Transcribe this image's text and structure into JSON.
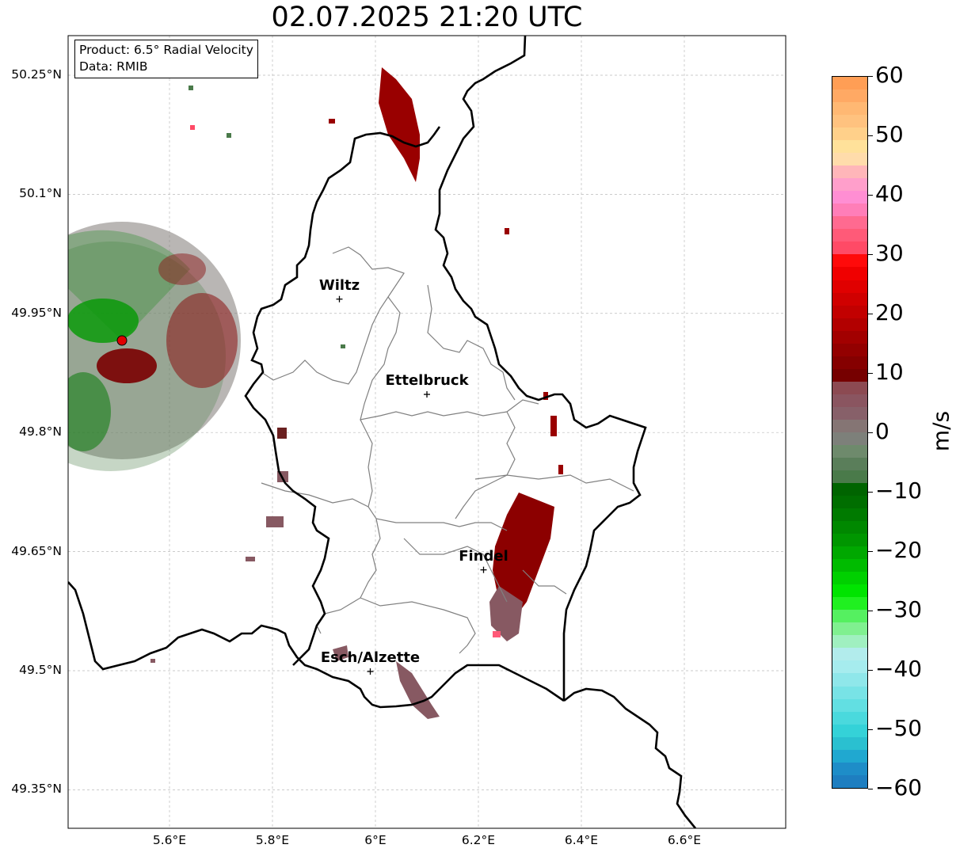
{
  "title": "02.07.2025 21:20 UTC",
  "info": {
    "product": "Product: 6.5° Radial Velocity",
    "data": "Data: RMIB"
  },
  "axes": {
    "lat_labels": [
      "50.25°N",
      "50.1°N",
      "49.95°N",
      "49.8°N",
      "49.65°N",
      "49.5°N",
      "49.35°N"
    ],
    "lat_values": [
      50.25,
      50.1,
      49.95,
      49.8,
      49.65,
      49.5,
      49.35
    ],
    "lon_labels": [
      "5.6°E",
      "5.8°E",
      "6°E",
      "6.2°E",
      "6.4°E",
      "6.6°E"
    ],
    "lon_values": [
      5.6,
      5.8,
      6.0,
      6.2,
      6.4,
      6.6
    ],
    "grid": true
  },
  "cities": [
    {
      "name": "Wiltz",
      "lon": 5.93,
      "lat": 49.968
    },
    {
      "name": "Ettelbruck",
      "lon": 6.1,
      "lat": 49.848
    },
    {
      "name": "Findel",
      "lon": 6.21,
      "lat": 49.627
    },
    {
      "name": "Esch/Alzette",
      "lon": 5.99,
      "lat": 49.499
    }
  ],
  "radar_site": {
    "lon": 5.505,
    "lat": 49.915
  },
  "colorbar": {
    "unit": "m/s",
    "ticks": [
      "60",
      "50",
      "40",
      "30",
      "20",
      "10",
      "0",
      "−10",
      "−20",
      "−30",
      "−40",
      "−50",
      "−60"
    ],
    "colors_top_to_bottom": [
      "#ff9e55",
      "#ffa964",
      "#ffb873",
      "#ffc27f",
      "#ffd08a",
      "#ffe19a",
      "#ffdcab",
      "#ffb6b9",
      "#ff9fcb",
      "#ff8ed3",
      "#ff7eb8",
      "#ff6a90",
      "#ff5a78",
      "#ff4a66",
      "#ff0a0a",
      "#f00000",
      "#e00000",
      "#d00000",
      "#c20000",
      "#b20000",
      "#a20000",
      "#930000",
      "#850000",
      "#760000",
      "#8c4a52",
      "#8a5560",
      "#876069",
      "#857574",
      "#7d807a",
      "#6e8a6c",
      "#5a7e5a",
      "#4a7a4a",
      "#006400",
      "#006e00",
      "#007a00",
      "#008800",
      "#009600",
      "#00a800",
      "#00bb00",
      "#00d000",
      "#00e400",
      "#20f020",
      "#55f060",
      "#80f090",
      "#a0f0c0",
      "#b2ecec",
      "#a6ecee",
      "#8fe7ea",
      "#78e3e6",
      "#62dfe2",
      "#4ad9dd",
      "#34d2d8",
      "#2ac0d0",
      "#20a8d0",
      "#1e8dc8",
      "#1e7ec0"
    ]
  }
}
